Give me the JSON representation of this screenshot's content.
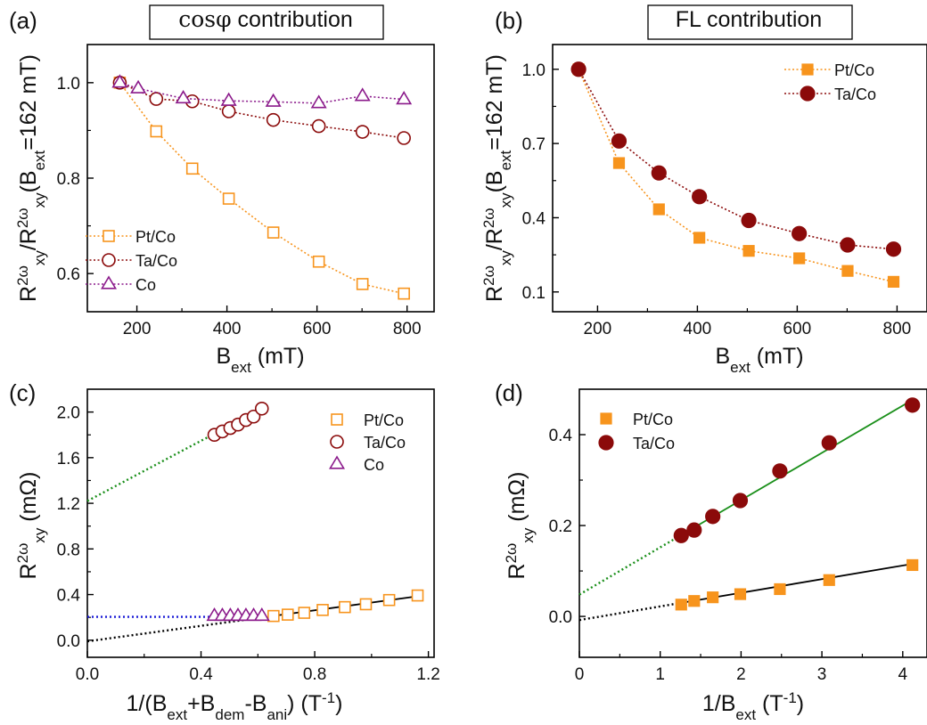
{
  "colors": {
    "pt_co": "#f7941d",
    "ta_co": "#8b0a0a",
    "co": "#8b1a8b",
    "fit_black": "#000000",
    "fit_green": "#1a8f1a",
    "fit_blue": "#1a1ad6"
  },
  "chart_data": [
    {
      "id": "a",
      "type": "line",
      "panel_label": "(a)",
      "title": {
        "pre": "",
        "greek": "cosφ",
        "post": " contribution"
      },
      "xlabel": {
        "main": "B",
        "sub": "ext",
        "unit": " (mT)"
      },
      "ylabel": {
        "line1": "R",
        "sup1": "2ω",
        "sub1": "xy",
        "mid": "/R",
        "sup2": "2ω",
        "sub2": "xy",
        "rest1": "(B",
        "sub3": "ext",
        "rest2": "=162 mT)"
      },
      "xlim": [
        90,
        860
      ],
      "ylim": [
        0.52,
        1.08
      ],
      "xticks": [
        200,
        400,
        600,
        800
      ],
      "xtick_labels": [
        "200",
        "400",
        "600",
        "800"
      ],
      "yticks": [
        0.6,
        0.8,
        1.0
      ],
      "ytick_labels": [
        "0.6",
        "0.8",
        "1.0"
      ],
      "legend_position": "lower-left",
      "series": [
        {
          "name": "Pt/Co",
          "marker": "square-open",
          "line": "dotted",
          "color_key": "pt_co",
          "x": [
            162,
            243,
            323,
            404,
            503,
            604,
            701,
            793
          ],
          "y": [
            1.0,
            0.898,
            0.82,
            0.757,
            0.686,
            0.625,
            0.578,
            0.558
          ]
        },
        {
          "name": "Ta/Co",
          "marker": "circle-open",
          "line": "dotted",
          "color_key": "ta_co",
          "x": [
            162,
            243,
            323,
            404,
            503,
            604,
            701,
            793
          ],
          "y": [
            1.0,
            0.966,
            0.961,
            0.94,
            0.922,
            0.909,
            0.897,
            0.884
          ]
        },
        {
          "name": "Co",
          "marker": "triangle-open",
          "line": "dotted",
          "color_key": "co",
          "x": [
            162,
            203,
            303,
            404,
            503,
            604,
            701,
            793
          ],
          "y": [
            1.0,
            0.988,
            0.967,
            0.962,
            0.96,
            0.957,
            0.972,
            0.965
          ]
        }
      ]
    },
    {
      "id": "b",
      "type": "line",
      "panel_label": "(b)",
      "title": {
        "pre": "FL contribution",
        "greek": "",
        "post": ""
      },
      "xlabel": {
        "main": "B",
        "sub": "ext",
        "unit": " (mT)"
      },
      "ylabel": {
        "line1": "R",
        "sup1": "2ω",
        "sub1": "xy",
        "mid": "/R",
        "sup2": "2ω",
        "sub2": "xy",
        "rest1": "(B",
        "sub3": "ext",
        "rest2": "=162 mT)"
      },
      "xlim": [
        110,
        860
      ],
      "ylim": [
        0.02,
        1.1
      ],
      "xticks": [
        200,
        400,
        600,
        800
      ],
      "xtick_labels": [
        "200",
        "400",
        "600",
        "800"
      ],
      "yticks": [
        0.1,
        0.4,
        0.7,
        1.0
      ],
      "ytick_labels": [
        "0.1",
        "0.4",
        "0.7",
        "1.0"
      ],
      "legend_position": "top-right",
      "series": [
        {
          "name": "Pt/Co",
          "marker": "square-filled",
          "line": "dotted",
          "color_key": "pt_co",
          "x": [
            162,
            243,
            323,
            404,
            503,
            604,
            701,
            793
          ],
          "y": [
            1.0,
            0.621,
            0.434,
            0.319,
            0.266,
            0.236,
            0.185,
            0.141
          ]
        },
        {
          "name": "Ta/Co",
          "marker": "circle-filled",
          "line": "dotted",
          "color_key": "ta_co",
          "x": [
            162,
            243,
            323,
            404,
            503,
            604,
            701,
            793
          ],
          "y": [
            1.0,
            0.71,
            0.581,
            0.485,
            0.389,
            0.336,
            0.29,
            0.273
          ]
        }
      ]
    },
    {
      "id": "c",
      "type": "scatter",
      "panel_label": "(c)",
      "title": {
        "pre": "",
        "greek": "",
        "post": ""
      },
      "xlabel": {
        "text": "1/(B",
        "sub1": "ext",
        "t2": "+B",
        "sub2": "dem",
        "t3": "-B",
        "sub3": "ani",
        "t4": ") (T",
        "sup": "-1",
        "t5": ")"
      },
      "ylabel": {
        "main": "R",
        "sup": "2ω",
        "sub": "xy",
        "unit": " (mΩ)"
      },
      "xlim": [
        0,
        1.22
      ],
      "ylim": [
        -0.15,
        2.2
      ],
      "xticks": [
        0.0,
        0.4,
        0.8,
        1.2
      ],
      "xtick_labels": [
        "0.0",
        "0.4",
        "0.8",
        "1.2"
      ],
      "yticks": [
        0.0,
        0.4,
        0.8,
        1.2,
        1.6,
        2.0
      ],
      "ytick_labels": [
        "0.0",
        "0.4",
        "0.8",
        "1.2",
        "1.6",
        "2.0"
      ],
      "legend_position": "top-right",
      "series": [
        {
          "name": "Pt/Co",
          "marker": "square-open",
          "color_key": "pt_co",
          "x": [
            0.655,
            0.705,
            0.763,
            0.828,
            0.906,
            0.98,
            1.062,
            1.162
          ],
          "y": [
            0.212,
            0.224,
            0.24,
            0.265,
            0.29,
            0.315,
            0.352,
            0.392
          ]
        },
        {
          "name": "Ta/Co",
          "marker": "circle-open",
          "color_key": "ta_co",
          "x": [
            0.447,
            0.475,
            0.503,
            0.53,
            0.558,
            0.585,
            0.614
          ],
          "y": [
            1.8,
            1.83,
            1.86,
            1.89,
            1.93,
            1.96,
            2.03
          ]
        },
        {
          "name": "Co",
          "marker": "triangle-open",
          "color_key": "co",
          "x": [
            0.447,
            0.475,
            0.503,
            0.53,
            0.558,
            0.585,
            0.614
          ],
          "y": [
            0.213,
            0.213,
            0.213,
            0.213,
            0.213,
            0.213,
            0.213
          ]
        }
      ],
      "fits": [
        {
          "color_key": "fit_black",
          "dotted": [
            0,
            0.655
          ],
          "solid": [
            0.655,
            1.17
          ],
          "slope": 0.34,
          "intercept": -0.01
        },
        {
          "color_key": "fit_green",
          "dotted": [
            0,
            0.44
          ],
          "solid": [
            0.44,
            0.62
          ],
          "slope": 1.32,
          "intercept": 1.22
        },
        {
          "color_key": "fit_blue",
          "dotted": [
            0,
            0.44
          ],
          "solid": [
            0.44,
            0.62
          ],
          "slope": 0.0,
          "intercept": 0.205
        }
      ]
    },
    {
      "id": "d",
      "type": "scatter",
      "panel_label": "(d)",
      "title": {
        "pre": "",
        "greek": "",
        "post": ""
      },
      "xlabel": {
        "main": "1/B",
        "sub": "ext",
        "unit": " (T",
        "sup": "-1",
        "tail": ")"
      },
      "ylabel": {
        "main": "R",
        "sup": "2ω",
        "sub": "xy",
        "unit": " (mΩ)"
      },
      "xlim": [
        0,
        4.3
      ],
      "ylim": [
        -0.09,
        0.5
      ],
      "xticks": [
        0,
        1,
        2,
        3,
        4
      ],
      "xtick_labels": [
        "0",
        "1",
        "2",
        "3",
        "4"
      ],
      "yticks": [
        0.0,
        0.2,
        0.4
      ],
      "ytick_labels": [
        "0.0",
        "0.2",
        "0.4"
      ],
      "legend_position": "top-left",
      "series": [
        {
          "name": "Pt/Co",
          "marker": "square-filled",
          "color_key": "pt_co",
          "x": [
            1.26,
            1.42,
            1.65,
            1.99,
            2.48,
            3.09,
            4.12
          ],
          "y": [
            0.026,
            0.034,
            0.042,
            0.049,
            0.06,
            0.08,
            0.113
          ]
        },
        {
          "name": "Ta/Co",
          "marker": "circle-filled",
          "color_key": "ta_co",
          "x": [
            1.26,
            1.42,
            1.65,
            1.99,
            2.48,
            3.09,
            4.12
          ],
          "y": [
            0.178,
            0.19,
            0.22,
            0.255,
            0.32,
            0.382,
            0.465
          ]
        }
      ],
      "fits": [
        {
          "color_key": "fit_black",
          "dotted": [
            0,
            1.26
          ],
          "solid": [
            1.26,
            4.12
          ],
          "slope": 0.03,
          "intercept": -0.008
        },
        {
          "color_key": "fit_green",
          "dotted": [
            0,
            1.26
          ],
          "solid": [
            1.26,
            4.12
          ],
          "slope": 0.104,
          "intercept": 0.048
        }
      ]
    }
  ]
}
